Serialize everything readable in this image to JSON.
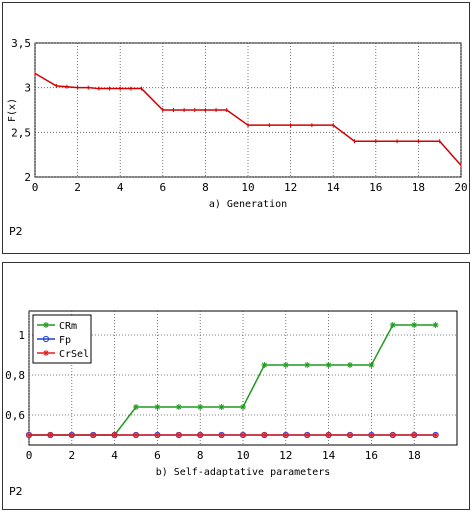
{
  "chart_data": [
    {
      "type": "line",
      "xlabel": "a) Generation",
      "ylabel": "F(x)",
      "xlim": [
        0,
        20
      ],
      "ylim": [
        2,
        3.5
      ],
      "xticks": [
        0,
        2,
        4,
        6,
        8,
        10,
        12,
        14,
        16,
        18,
        20
      ],
      "yticks": [
        2,
        2.5,
        3,
        3.5
      ],
      "ytick_labels": [
        "2",
        "2,5",
        "3",
        "3,5"
      ],
      "grid": true,
      "series": [
        {
          "color": "#d40000",
          "x": [
            0,
            1,
            1.5,
            2,
            2.5,
            3,
            3.5,
            4,
            4.5,
            5,
            6,
            6.5,
            7,
            7.5,
            8,
            8.5,
            9,
            10,
            11,
            12,
            13,
            14,
            15,
            16,
            17,
            18,
            19,
            20
          ],
          "y": [
            3.16,
            3.02,
            3.01,
            3.0,
            3.0,
            2.99,
            2.99,
            2.99,
            2.99,
            2.99,
            2.75,
            2.75,
            2.75,
            2.75,
            2.75,
            2.75,
            2.75,
            2.58,
            2.58,
            2.58,
            2.58,
            2.58,
            2.4,
            2.4,
            2.4,
            2.4,
            2.4,
            2.13
          ]
        }
      ],
      "panel_label": "P2"
    },
    {
      "type": "line",
      "xlabel": "b) Self-adaptative parameters",
      "ylabel": "",
      "xlim": [
        0,
        20
      ],
      "ylim": [
        0.45,
        1.12
      ],
      "xticks": [
        0,
        2,
        4,
        6,
        8,
        10,
        12,
        14,
        16,
        18
      ],
      "yticks": [
        0.6,
        0.8,
        1
      ],
      "ytick_labels": [
        "0,6",
        "0,8",
        "1"
      ],
      "grid": true,
      "legend": "top-left",
      "series": [
        {
          "name": "CRm",
          "color": "#1f9c1f",
          "marker": "star",
          "x": [
            0,
            1,
            2,
            3,
            4,
            5,
            6,
            7,
            8,
            9,
            10,
            11,
            12,
            13,
            14,
            15,
            16,
            17,
            18,
            19
          ],
          "y": [
            0.5,
            0.5,
            0.5,
            0.5,
            0.5,
            0.64,
            0.64,
            0.64,
            0.64,
            0.64,
            0.64,
            0.85,
            0.85,
            0.85,
            0.85,
            0.85,
            0.85,
            1.05,
            1.05,
            1.05
          ]
        },
        {
          "name": "Fp",
          "color": "#1f3fd6",
          "marker": "circle",
          "x": [
            0,
            1,
            2,
            3,
            4,
            5,
            6,
            7,
            8,
            9,
            10,
            11,
            12,
            13,
            14,
            15,
            16,
            17,
            18,
            19
          ],
          "y": [
            0.5,
            0.5,
            0.5,
            0.5,
            0.5,
            0.5,
            0.5,
            0.5,
            0.5,
            0.5,
            0.5,
            0.5,
            0.5,
            0.5,
            0.5,
            0.5,
            0.5,
            0.5,
            0.5,
            0.5
          ]
        },
        {
          "name": "CrSel",
          "color": "#e02020",
          "marker": "star",
          "x": [
            0,
            1,
            2,
            3,
            4,
            5,
            6,
            7,
            8,
            9,
            10,
            11,
            12,
            13,
            14,
            15,
            16,
            17,
            18,
            19
          ],
          "y": [
            0.5,
            0.5,
            0.5,
            0.5,
            0.5,
            0.5,
            0.5,
            0.5,
            0.5,
            0.5,
            0.5,
            0.5,
            0.5,
            0.5,
            0.5,
            0.5,
            0.5,
            0.5,
            0.5,
            0.5
          ]
        }
      ],
      "panel_label": "P2"
    }
  ]
}
